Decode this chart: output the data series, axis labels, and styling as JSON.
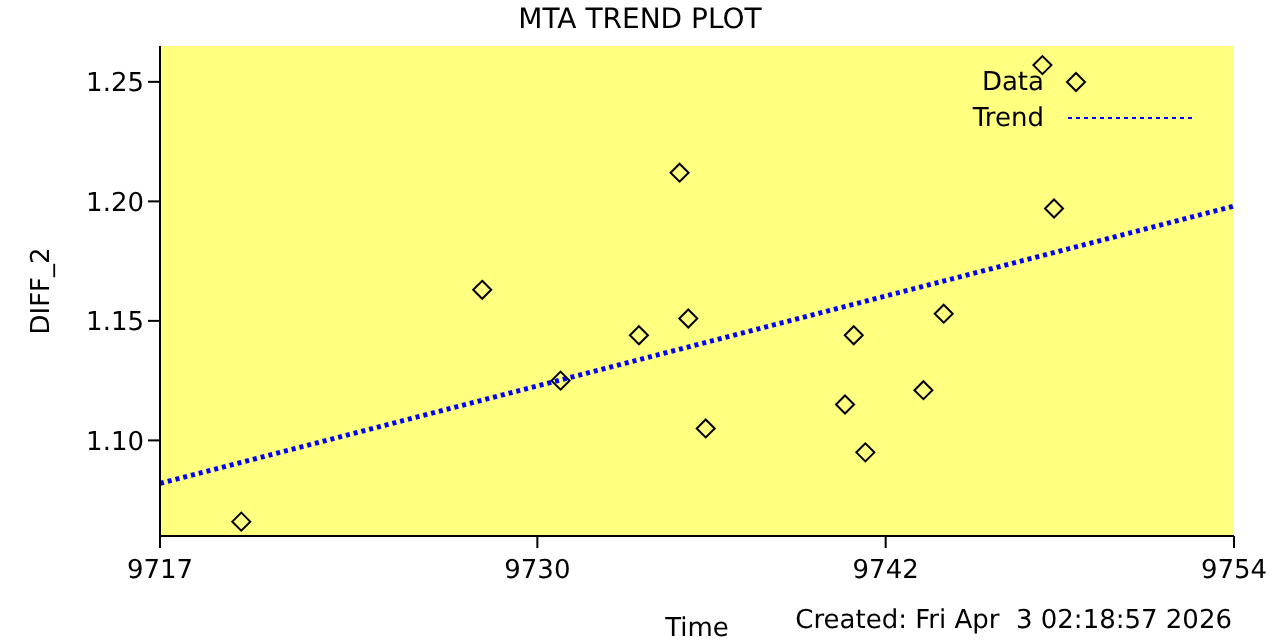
{
  "chart_data": {
    "type": "scatter",
    "title": "MTA TREND PLOT",
    "xlabel": "Time",
    "ylabel": "DIFF_2",
    "xlim": [
      9717,
      9754
    ],
    "xticks": [
      9717,
      9730,
      9742,
      9754
    ],
    "ylim": [
      1.06,
      1.265
    ],
    "yticks": [
      {
        "value": 1.1,
        "label": "1.10"
      },
      1.15,
      {
        "value": 1.2,
        "label": "1.20"
      },
      1.25
    ],
    "legend": "top right",
    "series": [
      {
        "name": "Data",
        "marker": "diamond",
        "color": "#000000",
        "x": [
          9719.8,
          9728.1,
          9730.8,
          9733.5,
          9734.9,
          9735.2,
          9735.8,
          9740.6,
          9740.9,
          9741.3,
          9743.3,
          9744.0,
          9747.4,
          9747.8
        ],
        "values": [
          1.066,
          1.163,
          1.125,
          1.144,
          1.212,
          1.151,
          1.105,
          1.115,
          1.144,
          1.095,
          1.121,
          1.153,
          1.257,
          1.197
        ]
      },
      {
        "name": "Trend",
        "type": "line",
        "marker": "none",
        "line_style": "dotted",
        "color": "#0000ff",
        "x": [
          9717,
          9754
        ],
        "values": [
          1.082,
          1.198
        ]
      }
    ],
    "annotations": [
      "Created: Fri Apr  3 02:18:57 2026"
    ]
  }
}
